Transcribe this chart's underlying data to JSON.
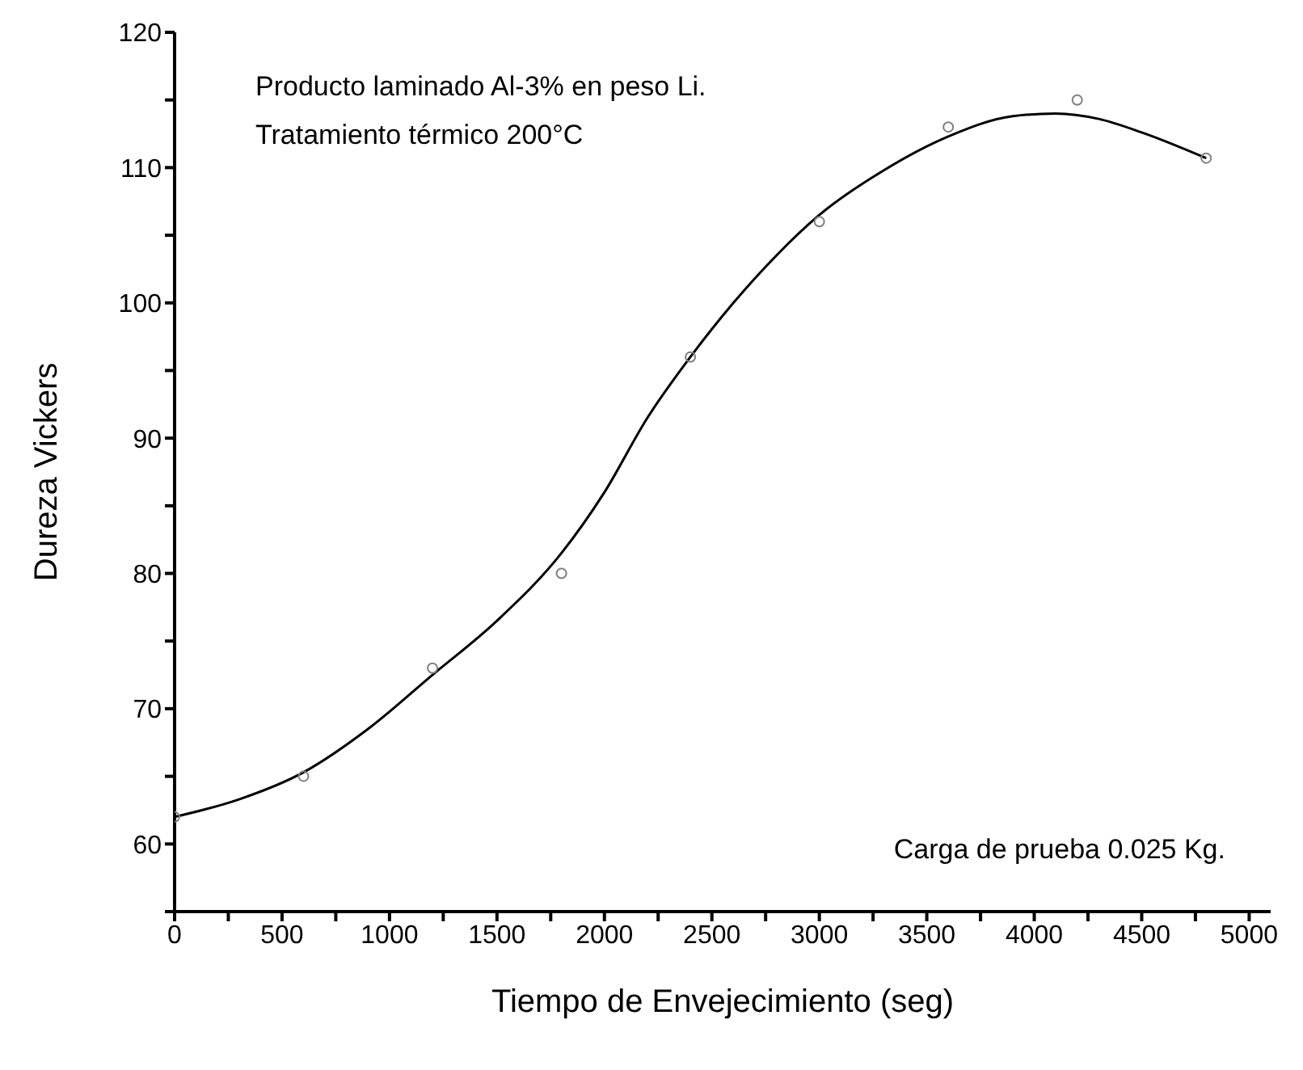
{
  "chart_data": {
    "type": "scatter",
    "xlabel": "Tiempo de Envejecimiento (seg)",
    "ylabel": "Dureza Vickers",
    "annotations": [
      "Producto laminado Al-3% en peso Li.",
      "Tratamiento térmico 200°C",
      "Carga de prueba 0.025 Kg."
    ],
    "x": [
      0,
      600,
      1200,
      1800,
      2400,
      3000,
      3600,
      4200,
      4800
    ],
    "series": [
      {
        "color": "#808080",
        "marker": "circle",
        "values": [
          62,
          65,
          73,
          80,
          96,
          106,
          113,
          115,
          110.7
        ]
      },
      {
        "type": "line",
        "color": "#000000",
        "marker": "none",
        "x": [
          0,
          300,
          600,
          900,
          1200,
          1500,
          1800,
          2000,
          2200,
          2400,
          2600,
          2800,
          3000,
          3300,
          3600,
          3900,
          4100,
          4300,
          4500,
          4800
        ],
        "values": [
          62,
          63.3,
          65.3,
          68.5,
          72.5,
          76.5,
          81.5,
          86,
          91.5,
          96,
          100,
          103.5,
          106.5,
          109.8,
          112.3,
          113.8,
          114,
          113.6,
          112.6,
          110.7
        ]
      }
    ],
    "xlim": [
      0,
      5100
    ],
    "xticks": [
      0,
      {
        "value": 250,
        "label": null
      },
      500,
      {
        "value": 750,
        "label": null
      },
      1000,
      {
        "value": 1250,
        "label": null
      },
      1500,
      {
        "value": 1750,
        "label": null
      },
      2000,
      {
        "value": 2250,
        "label": null
      },
      2500,
      {
        "value": 2750,
        "label": null
      },
      3000,
      {
        "value": 3250,
        "label": null
      },
      3500,
      {
        "value": 3750,
        "label": null
      },
      4000,
      {
        "value": 4250,
        "label": null
      },
      4500,
      {
        "value": 4750,
        "label": null
      },
      5000
    ],
    "ylim": [
      55,
      120
    ],
    "yticks": [
      {
        "value": 55,
        "label": null
      },
      60,
      {
        "value": 65,
        "label": null
      },
      70,
      {
        "value": 75,
        "label": null
      },
      80,
      {
        "value": 85,
        "label": null
      },
      90,
      {
        "value": 95,
        "label": null
      },
      100,
      {
        "value": 105,
        "label": null
      },
      110,
      {
        "value": 115,
        "label": null
      },
      120
    ],
    "grid": false,
    "legend": false
  }
}
